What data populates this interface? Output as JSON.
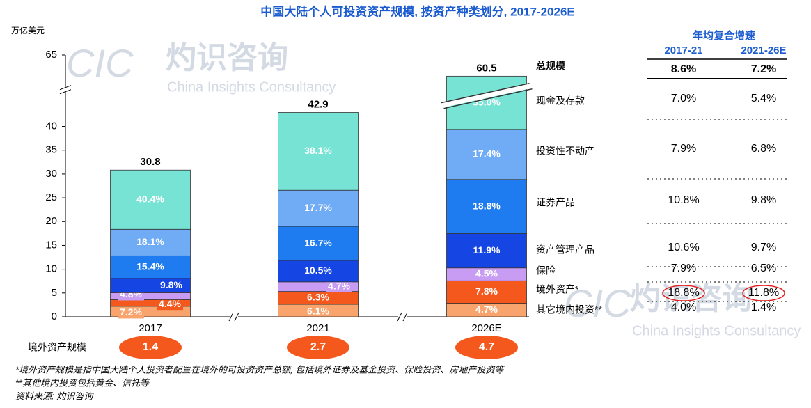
{
  "chart_data": {
    "type": "bar",
    "stacked": true,
    "title": "中国大陆个人可投资资产规模, 按资产种类划分, 2017-2026E",
    "y_unit": "万亿美元",
    "categories": [
      "2017",
      "2021",
      "2026E"
    ],
    "ylim": [
      0,
      65
    ],
    "ybreak": [
      47,
      57
    ],
    "yticks": [
      0,
      5,
      10,
      15,
      20,
      25,
      30,
      35,
      40,
      65
    ],
    "totals": [
      30.8,
      42.9,
      60.5
    ],
    "series": [
      {
        "name": "其它境内投资**",
        "color": "#f8a46c",
        "values": [
          2.22,
          2.62,
          2.84
        ],
        "shares": [
          "7.2%",
          "6.1%",
          "4.7%"
        ],
        "cagr": [
          "4.0%",
          "1.4%"
        ]
      },
      {
        "name": "境外资产*",
        "color": "#f4581c",
        "values": [
          1.36,
          2.7,
          4.72
        ],
        "shares": [
          "4.4%",
          "6.3%",
          "7.8%"
        ],
        "cagr": [
          "18.8%",
          "11.8%"
        ],
        "cagr_highlight": true
      },
      {
        "name": "保险",
        "color": "#c89cf2",
        "values": [
          1.48,
          2.02,
          2.72
        ],
        "shares": [
          "4.8%",
          "4.7%",
          "4.5%"
        ],
        "cagr": [
          "7.9%",
          "6.5%"
        ]
      },
      {
        "name": "资产管理产品",
        "color": "#1546e4",
        "values": [
          3.02,
          4.5,
          7.2
        ],
        "shares": [
          "9.8%",
          "10.5%",
          "11.9%"
        ],
        "cagr": [
          "10.6%",
          "9.7%"
        ]
      },
      {
        "name": "证券产品",
        "color": "#1e7bf0",
        "values": [
          4.74,
          7.16,
          11.37
        ],
        "shares": [
          "15.4%",
          "16.7%",
          "18.8%"
        ],
        "cagr": [
          "10.8%",
          "9.8%"
        ]
      },
      {
        "name": "投资性不动产",
        "color": "#70acf6",
        "values": [
          5.57,
          7.59,
          10.53
        ],
        "shares": [
          "18.1%",
          "17.7%",
          "17.4%"
        ],
        "cagr": [
          "7.9%",
          "6.8%"
        ]
      },
      {
        "name": "现金及存款",
        "color": "#77e3d5",
        "values": [
          12.44,
          16.34,
          21.18
        ],
        "shares": [
          "40.4%",
          "38.1%",
          "35.0%"
        ],
        "cagr": [
          "7.0%",
          "5.4%"
        ]
      }
    ],
    "cagr_title": "年均复合增速",
    "cagr_columns": [
      "2017-21",
      "2021-26E"
    ],
    "total_label": "总规模",
    "total_cagr": [
      "8.6%",
      "7.2%"
    ],
    "overseas_label": "境外资产规模",
    "overseas_values": [
      1.4,
      2.7,
      4.7
    ]
  },
  "watermark": {
    "logo": "CIC",
    "name": "灼识咨询",
    "en": "China Insights Consultancy"
  },
  "footnotes": [
    "*境外资产规模是指中国大陆个人投资者配置在境外的可投资资产总额, 包括境外证券及基金投资、保险投资、房地产投资等",
    "**其他境内投资包括黄金、信托等",
    "资料来源: 灼识咨询"
  ]
}
